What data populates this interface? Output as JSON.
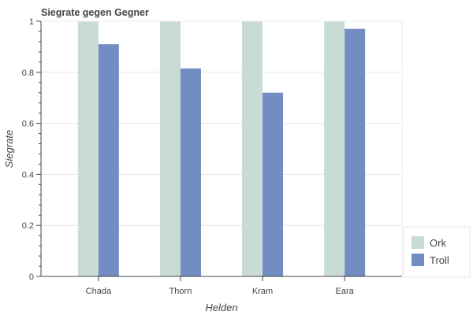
{
  "chart_data": {
    "type": "bar",
    "title": "Siegrate gegen Gegner",
    "xlabel": "Helden",
    "ylabel": "Siegrate",
    "categories": [
      "Chada",
      "Thorn",
      "Kram",
      "Eara"
    ],
    "series": [
      {
        "name": "Ork",
        "color": "#c9dbd5",
        "values": [
          1.0,
          1.0,
          1.0,
          1.0
        ]
      },
      {
        "name": "Troll",
        "color": "#718dc1",
        "values": [
          0.91,
          0.815,
          0.72,
          0.97
        ]
      }
    ],
    "ylim": [
      0,
      1
    ],
    "yticks": [
      "0",
      "0.2",
      "0.4",
      "0.6",
      "0.8",
      "1"
    ],
    "ytick_values": [
      0,
      0.2,
      0.4,
      0.6,
      0.8,
      1
    ],
    "grid": true,
    "legend_position": "bottom-right"
  }
}
